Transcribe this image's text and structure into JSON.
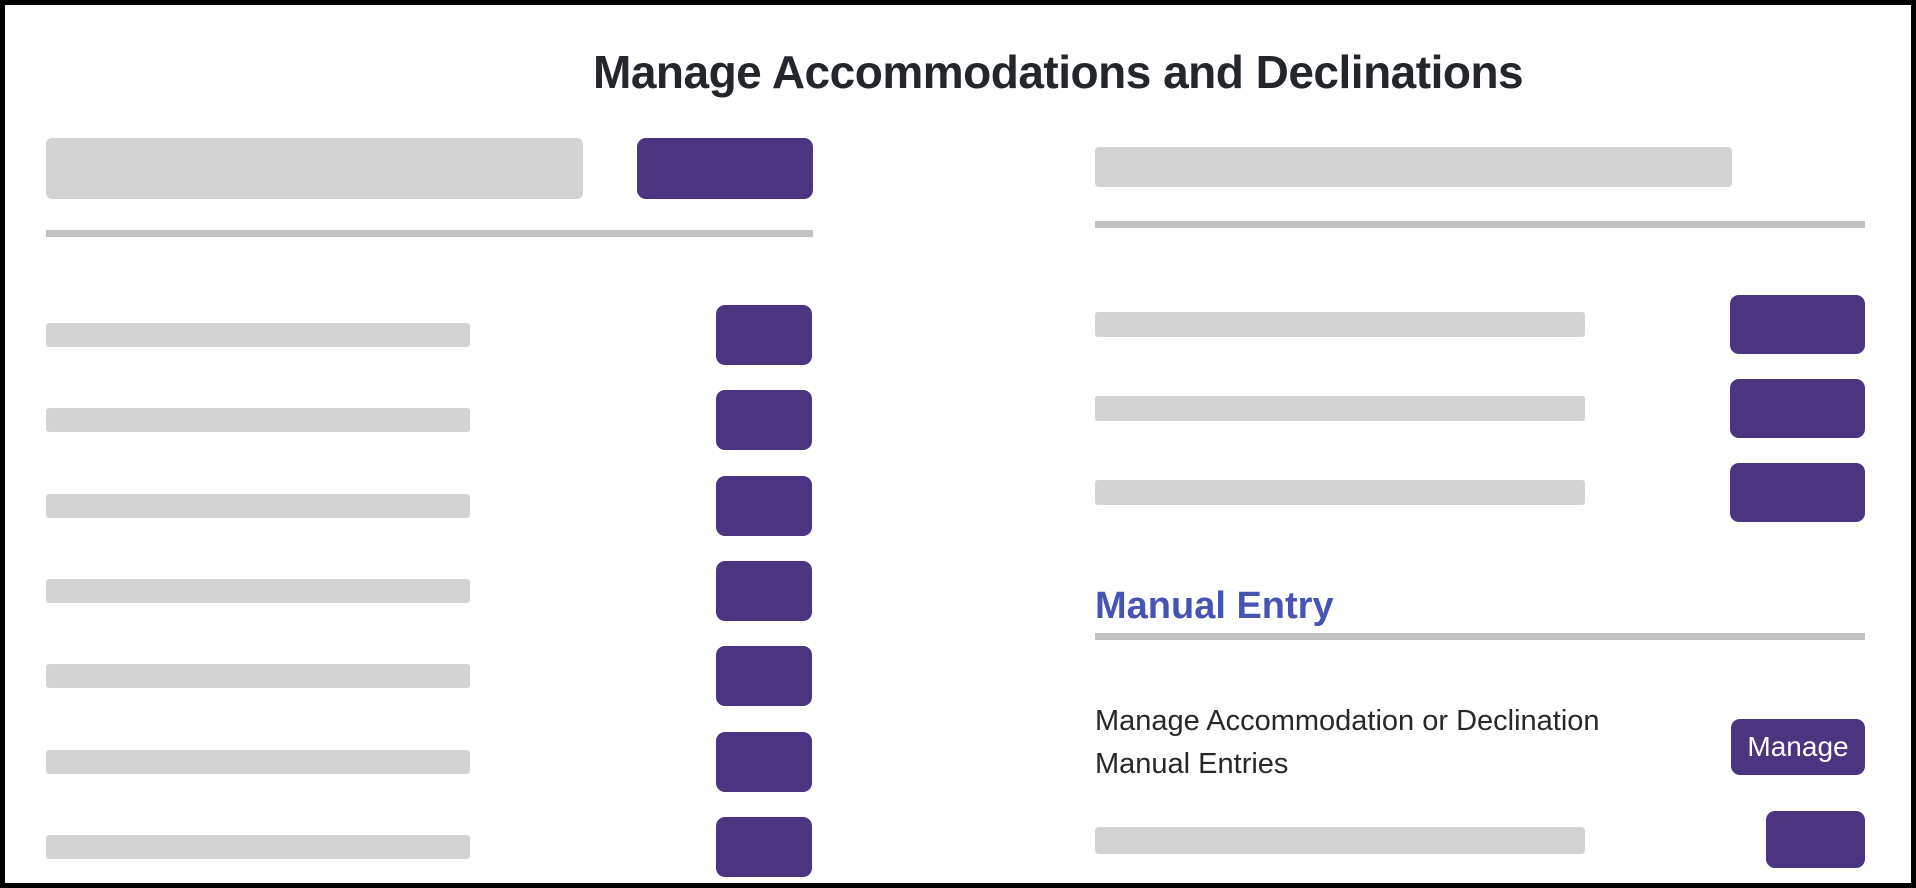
{
  "page": {
    "title": "Manage Accommodations and Declinations"
  },
  "colors": {
    "accent_purple": "#4B3480",
    "placeholder_gray": "#D3D3D3",
    "divider_gray": "#C2C2C2",
    "heading_indigo": "#4754B4",
    "text_dark": "#23262B",
    "frame_black": "#000000"
  },
  "left_panel": {
    "search_row": {
      "has_input_placeholder_bar": true,
      "has_action_button": true
    },
    "placeholder_row_count": 7,
    "row_button_tops": [
      300,
      385,
      471,
      556,
      641,
      727,
      812
    ]
  },
  "right_panel": {
    "has_top_placeholder_bar": true,
    "placeholder_row_count": 3,
    "row_button_tops": [
      290,
      374,
      458
    ],
    "manual_entry": {
      "heading": "Manual Entry"
    },
    "manage_row": {
      "description": "Manage Accommodation or Declination Manual Entries",
      "button_label": "Manage"
    },
    "bottom_placeholder_row_count": 1
  }
}
